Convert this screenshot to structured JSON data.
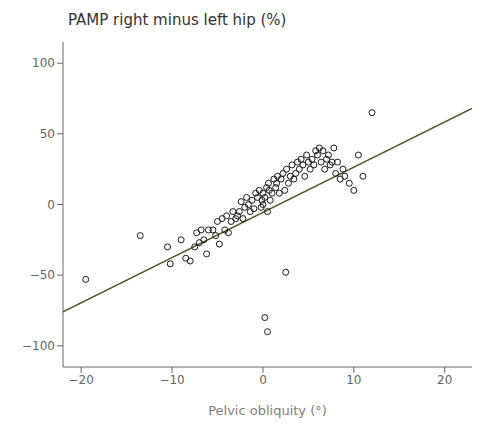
{
  "chart_data": {
    "type": "scatter",
    "title": "PAMP right minus left hip (%)",
    "xlabel": "Pelvic obliquity (°)",
    "xlim": [
      -22,
      23
    ],
    "ylim": [
      -115,
      115
    ],
    "xticks": [
      {
        "value": -20,
        "label": "−20"
      },
      {
        "value": -10,
        "label": "−10"
      },
      0,
      10,
      20
    ],
    "yticks": [
      {
        "value": -100,
        "label": "−100"
      },
      {
        "value": -50,
        "label": "−50"
      },
      0,
      50,
      100
    ],
    "grid": false,
    "series": [
      {
        "type": "line",
        "color": "#4a5a2a",
        "x": [
          -22,
          23
        ],
        "values": [
          -76,
          68
        ]
      },
      {
        "type": "scatter",
        "color": "#1a1a1a",
        "marker": "circle",
        "x": [
          -19.5,
          -13.5,
          -10.5,
          -10.2,
          -9.0,
          -8.5,
          -8.0,
          -7.5,
          -7.3,
          -7.0,
          -6.8,
          -6.5,
          -6.2,
          -6.0,
          -5.5,
          -5.2,
          -5.0,
          -4.8,
          -4.5,
          -4.2,
          -4.0,
          -3.8,
          -3.5,
          -3.3,
          -3.0,
          -2.8,
          -2.6,
          -2.4,
          -2.2,
          -2.0,
          -1.8,
          -1.6,
          -1.4,
          -1.2,
          -1.0,
          -0.8,
          -0.6,
          -0.4,
          -0.2,
          -0.1,
          0.0,
          0.0,
          0.2,
          0.4,
          0.5,
          0.6,
          0.7,
          0.8,
          1.0,
          1.2,
          1.4,
          1.5,
          1.6,
          1.8,
          2.0,
          2.2,
          2.4,
          2.6,
          2.8,
          3.0,
          3.2,
          3.4,
          3.6,
          3.8,
          4.0,
          4.2,
          4.4,
          4.6,
          4.8,
          5.0,
          5.2,
          5.4,
          5.6,
          5.8,
          6.0,
          6.2,
          6.4,
          6.6,
          6.8,
          7.0,
          7.2,
          7.4,
          7.6,
          7.8,
          8.0,
          8.2,
          8.5,
          8.8,
          9.0,
          9.5,
          10.0,
          10.5,
          11.0,
          12.0,
          0.2,
          0.5,
          2.5
        ],
        "values": [
          -53,
          -22,
          -30,
          -42,
          -25,
          -38,
          -40,
          -30,
          -20,
          -27,
          -18,
          -25,
          -35,
          -18,
          -18,
          -22,
          -12,
          -28,
          -10,
          -18,
          -8,
          -20,
          -12,
          -5,
          -10,
          -8,
          -5,
          2,
          -10,
          -2,
          5,
          0,
          -5,
          3,
          -3,
          8,
          5,
          10,
          -2,
          3,
          0,
          8,
          5,
          12,
          -5,
          15,
          10,
          3,
          8,
          18,
          12,
          15,
          20,
          8,
          18,
          22,
          10,
          25,
          15,
          20,
          28,
          18,
          22,
          30,
          25,
          32,
          28,
          20,
          35,
          30,
          25,
          32,
          28,
          38,
          35,
          40,
          30,
          38,
          25,
          32,
          35,
          28,
          30,
          40,
          22,
          30,
          18,
          25,
          20,
          15,
          10,
          35,
          20,
          65,
          -80,
          -90,
          -48
        ]
      }
    ]
  }
}
